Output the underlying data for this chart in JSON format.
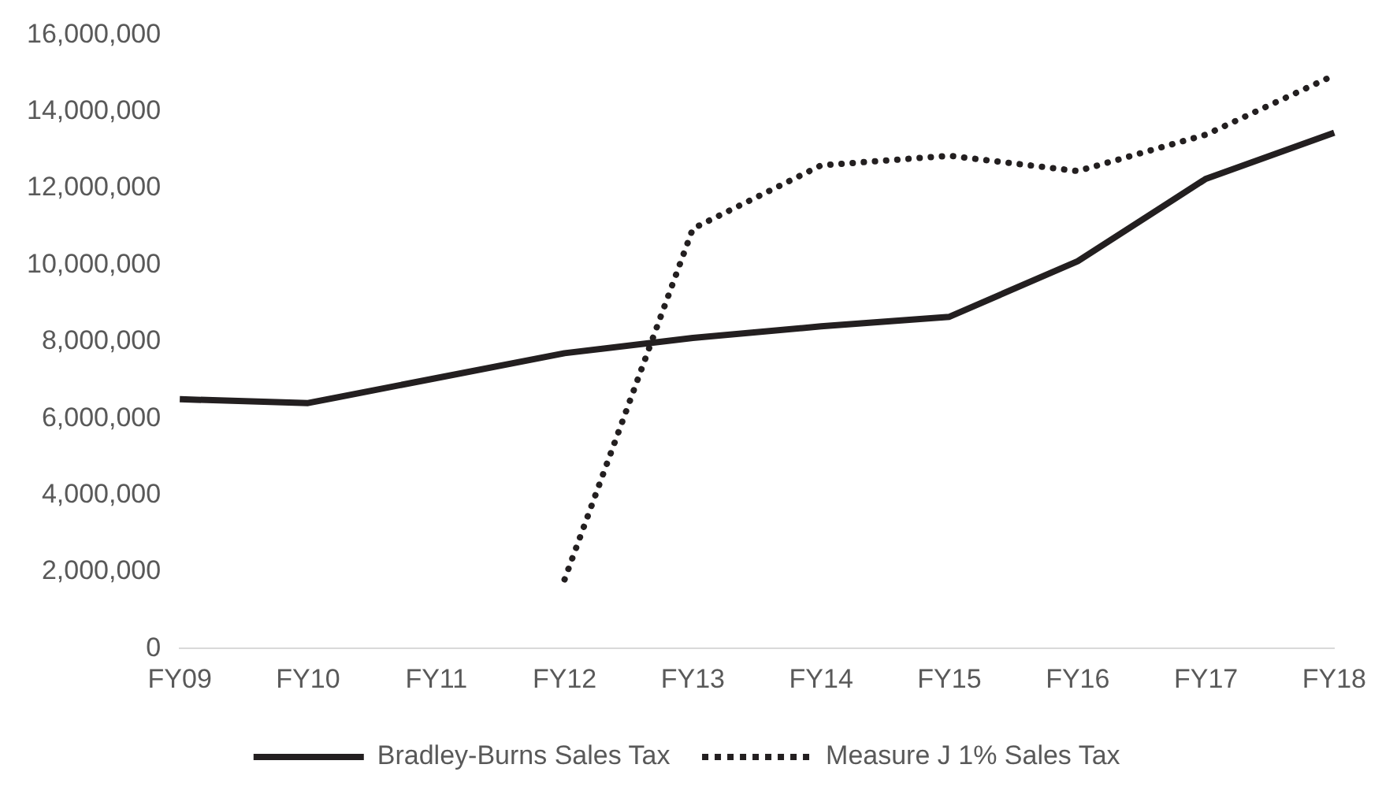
{
  "chart_data": {
    "type": "line",
    "categories": [
      "FY09",
      "FY10",
      "FY11",
      "FY12",
      "FY13",
      "FY14",
      "FY15",
      "FY16",
      "FY17",
      "FY18"
    ],
    "series": [
      {
        "name": "Bradley-Burns Sales Tax",
        "color": "#231f20",
        "line_style": "solid",
        "values": [
          6500000,
          6400000,
          7050000,
          7700000,
          8100000,
          8400000,
          8650000,
          10100000,
          12250000,
          13450000
        ]
      },
      {
        "name": "Measure J 1% Sales Tax",
        "color": "#231f20",
        "line_style": "dotted",
        "values": [
          null,
          null,
          null,
          1800000,
          10950000,
          12600000,
          12850000,
          12450000,
          13400000,
          14950000
        ]
      }
    ],
    "ylim": [
      0,
      16000000
    ],
    "yticks": [
      {
        "value": 0,
        "label": "0"
      },
      {
        "value": 2000000,
        "label": "2,000,000"
      },
      {
        "value": 4000000,
        "label": "4,000,000"
      },
      {
        "value": 6000000,
        "label": "6,000,000"
      },
      {
        "value": 8000000,
        "label": "8,000,000"
      },
      {
        "value": 10000000,
        "label": "10,000,000"
      },
      {
        "value": 12000000,
        "label": "12,000,000"
      },
      {
        "value": 14000000,
        "label": "14,000,000"
      },
      {
        "value": 16000000,
        "label": "16,000,000"
      }
    ],
    "grid": false,
    "legend": "bottom",
    "marker": "none"
  }
}
